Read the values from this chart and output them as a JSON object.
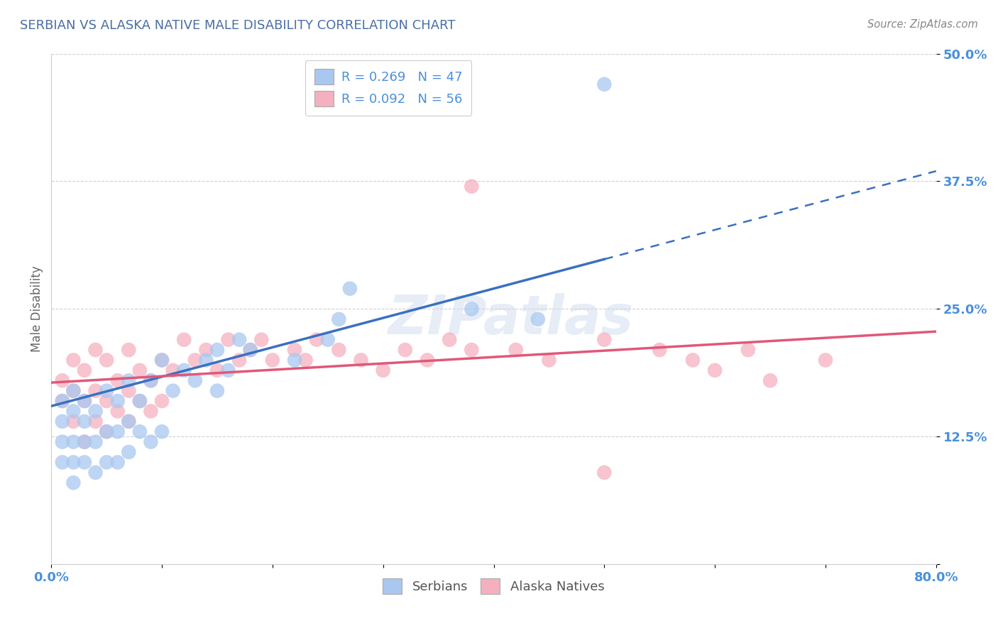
{
  "title": "SERBIAN VS ALASKA NATIVE MALE DISABILITY CORRELATION CHART",
  "source": "Source: ZipAtlas.com",
  "ylabel": "Male Disability",
  "xlim": [
    0.0,
    0.8
  ],
  "ylim": [
    0.0,
    0.5
  ],
  "xticks": [
    0.0,
    0.1,
    0.2,
    0.3,
    0.4,
    0.5,
    0.6,
    0.7,
    0.8
  ],
  "xticklabels": [
    "0.0%",
    "",
    "",
    "",
    "",
    "",
    "",
    "",
    "80.0%"
  ],
  "yticks": [
    0.0,
    0.125,
    0.25,
    0.375,
    0.5
  ],
  "yticklabels": [
    "",
    "12.5%",
    "25.0%",
    "37.5%",
    "50.0%"
  ],
  "title_color": "#4a6fa5",
  "source_color": "#888888",
  "axis_label_color": "#666666",
  "tick_color": "#4a90d9",
  "grid_color": "#cccccc",
  "watermark": "ZIPatlas",
  "legend_R1": "R = 0.269",
  "legend_N1": "N = 47",
  "legend_R2": "R = 0.092",
  "legend_N2": "N = 56",
  "serbian_color": "#a8c8f0",
  "alaska_color": "#f5b0c0",
  "serbian_edge": "#6090cc",
  "alaska_edge": "#e07090",
  "serbian_line_color": "#3a70c0",
  "alaska_line_color": "#e05878",
  "serbians_x": [
    0.01,
    0.01,
    0.01,
    0.01,
    0.02,
    0.02,
    0.02,
    0.02,
    0.02,
    0.03,
    0.03,
    0.03,
    0.03,
    0.04,
    0.04,
    0.04,
    0.05,
    0.05,
    0.05,
    0.06,
    0.06,
    0.06,
    0.07,
    0.07,
    0.07,
    0.08,
    0.08,
    0.09,
    0.09,
    0.1,
    0.1,
    0.11,
    0.12,
    0.13,
    0.14,
    0.15,
    0.15,
    0.16,
    0.17,
    0.18,
    0.22,
    0.25,
    0.26,
    0.27,
    0.38,
    0.44,
    0.5
  ],
  "serbians_y": [
    0.1,
    0.12,
    0.14,
    0.16,
    0.08,
    0.1,
    0.12,
    0.15,
    0.17,
    0.1,
    0.12,
    0.14,
    0.16,
    0.09,
    0.12,
    0.15,
    0.1,
    0.13,
    0.17,
    0.1,
    0.13,
    0.16,
    0.11,
    0.14,
    0.18,
    0.13,
    0.16,
    0.12,
    0.18,
    0.13,
    0.2,
    0.17,
    0.19,
    0.18,
    0.2,
    0.17,
    0.21,
    0.19,
    0.22,
    0.21,
    0.2,
    0.22,
    0.24,
    0.27,
    0.25,
    0.24,
    0.47
  ],
  "alaska_x": [
    0.01,
    0.01,
    0.02,
    0.02,
    0.02,
    0.03,
    0.03,
    0.03,
    0.04,
    0.04,
    0.04,
    0.05,
    0.05,
    0.05,
    0.06,
    0.06,
    0.07,
    0.07,
    0.07,
    0.08,
    0.08,
    0.09,
    0.09,
    0.1,
    0.1,
    0.11,
    0.12,
    0.13,
    0.14,
    0.15,
    0.16,
    0.17,
    0.18,
    0.19,
    0.2,
    0.22,
    0.23,
    0.24,
    0.26,
    0.28,
    0.3,
    0.32,
    0.34,
    0.36,
    0.38,
    0.42,
    0.45,
    0.5,
    0.55,
    0.58,
    0.6,
    0.63,
    0.65,
    0.7,
    0.38,
    0.5
  ],
  "alaska_y": [
    0.16,
    0.18,
    0.14,
    0.17,
    0.2,
    0.12,
    0.16,
    0.19,
    0.14,
    0.17,
    0.21,
    0.13,
    0.16,
    0.2,
    0.15,
    0.18,
    0.14,
    0.17,
    0.21,
    0.16,
    0.19,
    0.15,
    0.18,
    0.16,
    0.2,
    0.19,
    0.22,
    0.2,
    0.21,
    0.19,
    0.22,
    0.2,
    0.21,
    0.22,
    0.2,
    0.21,
    0.2,
    0.22,
    0.21,
    0.2,
    0.19,
    0.21,
    0.2,
    0.22,
    0.21,
    0.21,
    0.2,
    0.22,
    0.21,
    0.2,
    0.19,
    0.21,
    0.18,
    0.2,
    0.37,
    0.09
  ],
  "serbian_line_x0": 0.0,
  "serbian_line_y0": 0.155,
  "serbian_line_x1": 0.8,
  "serbian_line_y1": 0.385,
  "alaska_line_x0": 0.0,
  "alaska_line_y0": 0.178,
  "alaska_line_x1": 0.8,
  "alaska_line_y1": 0.228
}
